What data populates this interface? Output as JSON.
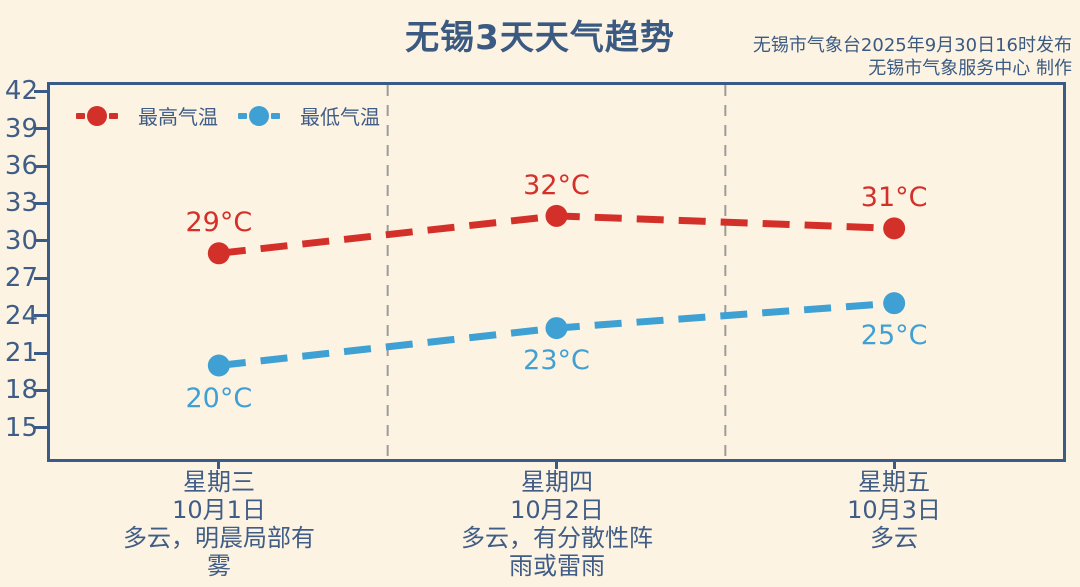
{
  "title": "无锡3天天气趋势",
  "publisher": {
    "line1": "无锡市气象台2025年9月30日16时发布",
    "line2": "无锡市气象服务中心  制作"
  },
  "legend": {
    "high": "最高气温",
    "low": "最低气温"
  },
  "colors": {
    "background": "#fdf3e2",
    "text": "#3f5d86",
    "axis": "#3a5a88",
    "gridline": "#9b9b9b",
    "high": "#d4302a",
    "low": "#3fa0d4"
  },
  "chart_data": {
    "type": "line",
    "categories": [
      "星期三",
      "星期四",
      "星期五"
    ],
    "dates": [
      "10月1日",
      "10月2日",
      "10月3日"
    ],
    "conditions": [
      "多云，明晨局部有雾",
      "多云，有分散性阵雨或雷雨",
      "多云"
    ],
    "series": [
      {
        "name": "最高气温",
        "color": "#d4302a",
        "values": [
          29,
          32,
          31
        ]
      },
      {
        "name": "最低气温",
        "color": "#3fa0d4",
        "values": [
          20,
          23,
          25
        ]
      }
    ],
    "unit": "°C",
    "yticks": [
      15,
      18,
      21,
      24,
      27,
      30,
      33,
      36,
      39,
      42
    ],
    "ylim": [
      12.5,
      42.5
    ],
    "grid": "vertical-dashed-category-boundaries",
    "line_style": "thick-dashed",
    "legend_position": "top-left-inside",
    "title": "无锡3天天气趋势"
  }
}
